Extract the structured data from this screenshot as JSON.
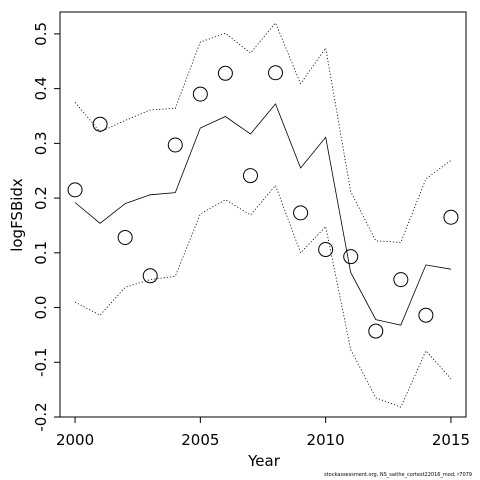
{
  "chart_data": {
    "type": "line",
    "xlabel": "Year",
    "ylabel": "logFSBidx",
    "xlim": [
      1999.4,
      2015.6
    ],
    "ylim": [
      -0.2,
      0.54
    ],
    "x_ticks": [
      2000,
      2005,
      2010,
      2015
    ],
    "y_ticks": [
      -0.2,
      -0.1,
      0.0,
      0.1,
      0.2,
      0.3,
      0.4,
      0.5
    ],
    "x_tick_labels": [
      "2000",
      "2005",
      "2010",
      "2015"
    ],
    "y_tick_labels": [
      "-0.2",
      "-0.1",
      "0.0",
      "0.1",
      "0.2",
      "0.3",
      "0.4",
      "0.5"
    ],
    "grid": false,
    "x": [
      2000,
      2001,
      2002,
      2003,
      2004,
      2005,
      2006,
      2007,
      2008,
      2009,
      2010,
      2011,
      2012,
      2013,
      2014,
      2015
    ],
    "series": [
      {
        "style": "points",
        "values": [
          0.215,
          0.335,
          0.128,
          0.058,
          0.297,
          0.39,
          0.428,
          0.241,
          0.429,
          0.173,
          0.106,
          0.093,
          -0.043,
          0.051,
          -0.014,
          0.165
        ]
      },
      {
        "style": "solid-line",
        "values": [
          0.192,
          0.154,
          0.19,
          0.206,
          0.21,
          0.328,
          0.349,
          0.317,
          0.372,
          0.255,
          0.311,
          0.064,
          -0.022,
          -0.032,
          0.078,
          0.07
        ]
      },
      {
        "style": "dotted-upper",
        "values": [
          0.375,
          0.321,
          0.342,
          0.361,
          0.364,
          0.485,
          0.501,
          0.465,
          0.52,
          0.409,
          0.474,
          0.212,
          0.122,
          0.119,
          0.235,
          0.269
        ]
      },
      {
        "style": "dotted-lower",
        "values": [
          0.01,
          -0.014,
          0.037,
          0.051,
          0.057,
          0.171,
          0.197,
          0.169,
          0.223,
          0.1,
          0.148,
          -0.077,
          -0.165,
          -0.182,
          -0.079,
          -0.13
        ]
      }
    ]
  },
  "footer": "stockassessment.org, NS_saithe_cortest22016_mod, r7079"
}
